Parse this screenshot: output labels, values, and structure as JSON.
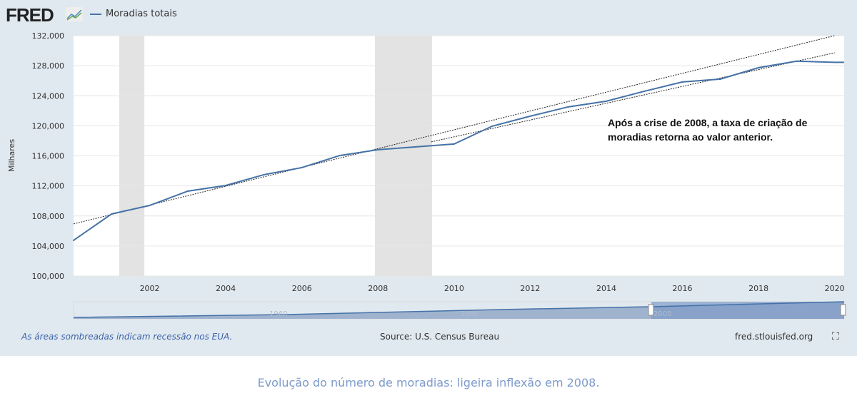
{
  "header": {
    "logo": "FRED",
    "legend_label": "Moradias totais"
  },
  "chart_data": {
    "type": "line",
    "title": "",
    "xlabel": "",
    "ylabel": "Milhares",
    "x": [
      2000,
      2001,
      2002,
      2003,
      2004,
      2005,
      2006,
      2007,
      2008,
      2010,
      2011,
      2012,
      2013,
      2014,
      2015,
      2016,
      2017,
      2018,
      2019,
      2020
    ],
    "series": [
      {
        "name": "Moradias totais",
        "color": "#4572a7",
        "values": [
          104750,
          108270,
          109400,
          111300,
          112060,
          113490,
          114440,
          116050,
          116820,
          117580,
          119950,
          121280,
          122520,
          123280,
          124600,
          125840,
          126220,
          127740,
          128600,
          128450
        ]
      }
    ],
    "trend_lines": [
      {
        "x": [
          2000,
          2020
        ],
        "y": [
          106940,
          132000
        ]
      },
      {
        "x": [
          2009.4,
          2020
        ],
        "y": [
          117860,
          129720
        ]
      }
    ],
    "recessions": [
      [
        2001.2,
        2001.86
      ],
      [
        2007.92,
        2009.42
      ]
    ],
    "xlim": [
      2000,
      2020.25
    ],
    "ylim": [
      100000,
      132000
    ],
    "xticks": [
      "2002",
      "2004",
      "2006",
      "2008",
      "2010",
      "2012",
      "2014",
      "2016",
      "2018",
      "2020"
    ],
    "yticks": [
      "100,000",
      "104,000",
      "108,000",
      "112,000",
      "116,000",
      "120,000",
      "124,000",
      "128,000",
      "132,000"
    ],
    "grid": true,
    "legend": "top-left",
    "annotation": "Após a crise de 2008, a taxa de criação de moradias retorna ao valor anterior.",
    "navigator_labels": [
      "1960",
      "1980",
      "2000"
    ]
  },
  "footer": {
    "note": "As áreas sombreadas indicam recessão nos EUA.",
    "source": "Source: U.S. Census Bureau",
    "site": "fred.stlouisfed.org",
    "fullscreen_icon": "fullscreen-icon"
  },
  "caption": "Evolução do número de moradias: ligeira inflexão em 2008."
}
